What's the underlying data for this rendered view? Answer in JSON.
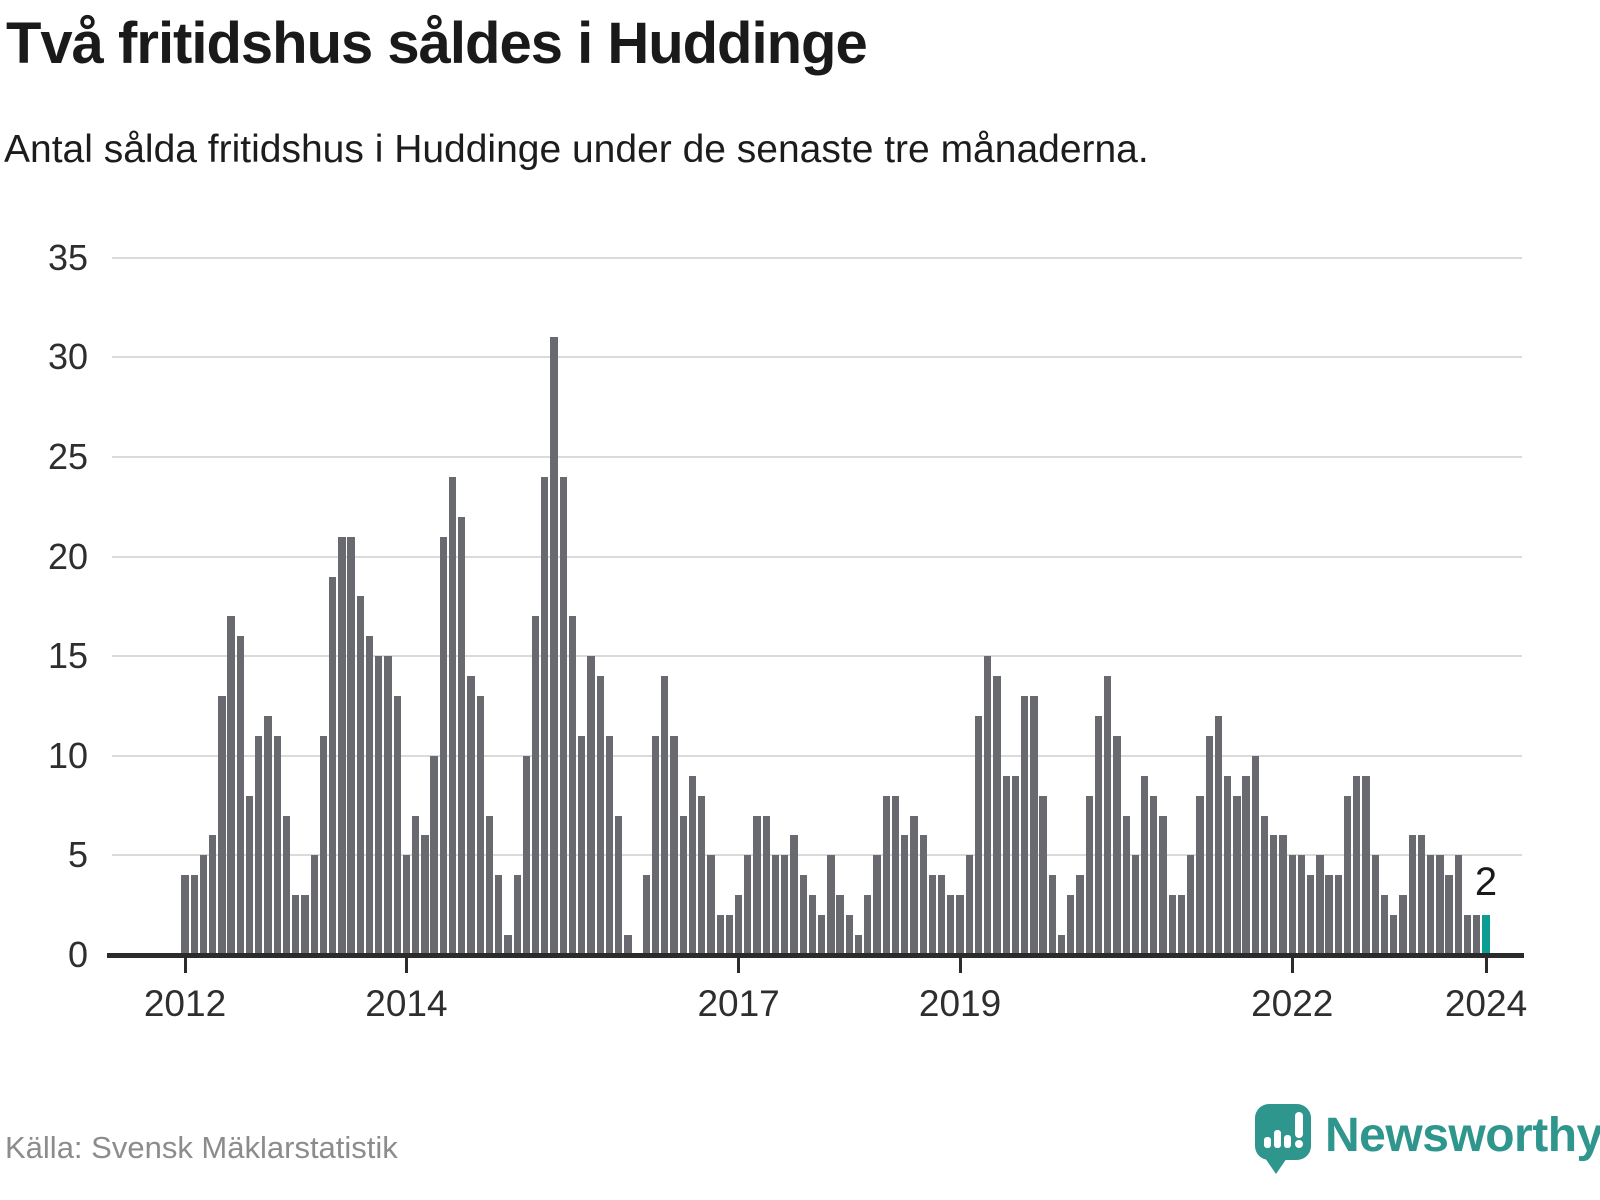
{
  "header": {
    "title": "Två fritidshus såldes i Huddinge",
    "subtitle": "Antal sålda fritidshus i Huddinge under de senaste tre månaderna."
  },
  "footer": {
    "source": "Källa: Svensk Mäklarstatistik",
    "brand": "Newsworthy",
    "brand_icon": "bar-chart-speech-bubble-icon"
  },
  "colors": {
    "bar": "#696970",
    "highlight": "#0b9d93",
    "grid": "#dadada",
    "axis": "#2b2b2b",
    "text": "#1a1a1a",
    "tick_text": "#2e2e2e",
    "source_text": "#8c8c8c",
    "brand": "#2f968d"
  },
  "chart_data": {
    "type": "bar",
    "title": "Två fritidshus såldes i Huddinge",
    "subtitle": "Antal sålda fritidshus i Huddinge under de senaste tre månaderna.",
    "xlabel": "",
    "ylabel": "",
    "ylim": [
      0,
      35
    ],
    "yticks": [
      0,
      5,
      10,
      15,
      20,
      25,
      30,
      35
    ],
    "grid": "horizontal",
    "legend": "none",
    "frequency": "monthly",
    "start_month": "2012-01",
    "x_tick_labels": [
      "2012",
      "2014",
      "2017",
      "2019",
      "2022",
      "2024"
    ],
    "x_tick_indices": [
      0,
      24,
      60,
      84,
      120,
      141
    ],
    "values": [
      4,
      4,
      5,
      6,
      13,
      17,
      16,
      8,
      11,
      12,
      11,
      7,
      3,
      3,
      5,
      11,
      19,
      21,
      21,
      18,
      16,
      15,
      15,
      13,
      5,
      7,
      6,
      10,
      21,
      24,
      22,
      14,
      13,
      7,
      4,
      1,
      4,
      10,
      17,
      24,
      31,
      24,
      17,
      11,
      15,
      14,
      11,
      7,
      1,
      0,
      4,
      11,
      14,
      11,
      7,
      9,
      8,
      5,
      2,
      2,
      3,
      5,
      7,
      7,
      5,
      5,
      6,
      4,
      3,
      2,
      5,
      3,
      2,
      1,
      3,
      5,
      8,
      8,
      6,
      7,
      6,
      4,
      4,
      3,
      3,
      5,
      12,
      15,
      14,
      9,
      9,
      13,
      13,
      8,
      4,
      1,
      3,
      4,
      8,
      12,
      14,
      11,
      7,
      5,
      9,
      8,
      7,
      3,
      3,
      5,
      8,
      11,
      12,
      9,
      8,
      9,
      10,
      7,
      6,
      6,
      5,
      5,
      4,
      5,
      4,
      4,
      8,
      9,
      9,
      5,
      3,
      2,
      3,
      6,
      6,
      5,
      5,
      4,
      5,
      2,
      2,
      2
    ],
    "highlight": {
      "index": 141,
      "value": 2,
      "label": "2"
    }
  }
}
